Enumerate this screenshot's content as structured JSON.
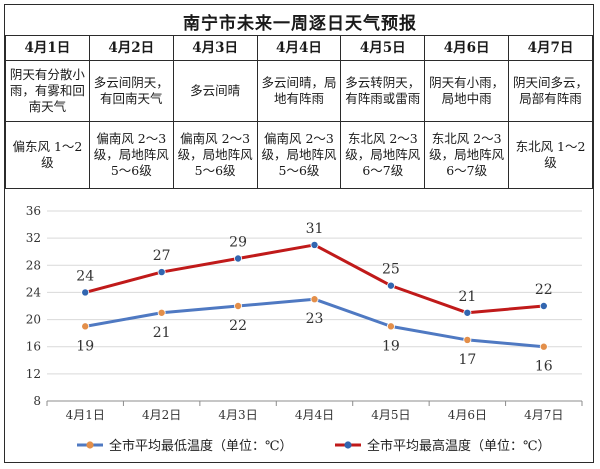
{
  "title": "南宁市未来一周逐日天气预报",
  "days": [
    {
      "date": "4月1日",
      "weather": "阴天有分散小雨，有雾和回南天气",
      "wind": "偏东风 1～2级"
    },
    {
      "date": "4月2日",
      "weather": "多云间阴天，有回南天气",
      "wind": "偏南风 2～3级，局地阵风 5～6级"
    },
    {
      "date": "4月3日",
      "weather": "多云间晴",
      "wind": "偏南风 2～3级，局地阵风 5～6级"
    },
    {
      "date": "4月4日",
      "weather": "多云间晴，局地有阵雨",
      "wind": "偏南风 2～3级，局地阵风 5～6级"
    },
    {
      "date": "4月5日",
      "weather": "多云转阴天，有阵雨或雷雨",
      "wind": "东北风 2～3级，局地阵风 6～7级"
    },
    {
      "date": "4月6日",
      "weather": "阴天有小雨，局地中雨",
      "wind": "东北风 2～3级，局地阵风 6～7级"
    },
    {
      "date": "4月7日",
      "weather": "阴天间多云，局部有阵雨",
      "wind": "东北风 1～2级"
    }
  ],
  "chart_data": {
    "type": "line",
    "categories": [
      "4月1日",
      "4月2日",
      "4月3日",
      "4月4日",
      "4月5日",
      "4月6日",
      "4月7日"
    ],
    "ylim": [
      8,
      36
    ],
    "yticks": [
      8,
      12,
      16,
      20,
      24,
      28,
      32,
      36
    ],
    "grid": "horizontal",
    "legend_position": "bottom",
    "series": [
      {
        "name": "全市平均最低温度（单位：℃）",
        "values": [
          19,
          21,
          22,
          23,
          19,
          17,
          16
        ],
        "color": "#4f79c2",
        "marker_color": "#e38f4a"
      },
      {
        "name": "全市平均最高温度（单位：℃）",
        "values": [
          24,
          27,
          29,
          31,
          25,
          21,
          22
        ],
        "color": "#c01a1a",
        "marker_color": "#3266b0"
      }
    ]
  }
}
